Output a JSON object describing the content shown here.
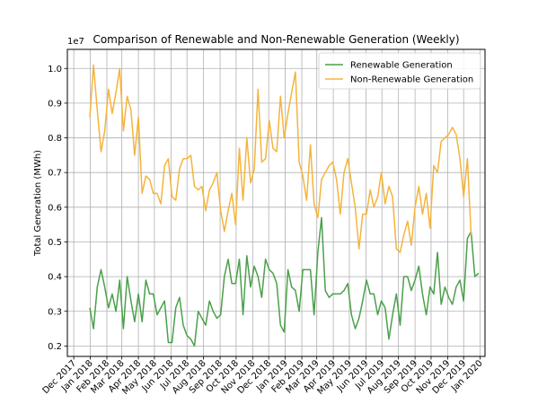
{
  "chart_data": {
    "type": "line",
    "title": "Comparison of Renewable and Non-Renewable Generation (Weekly)",
    "xlabel": "",
    "ylabel": "Total Generation (MWh)",
    "y_scale_label": "1e7",
    "ylim": [
      0.17,
      1.055
    ],
    "xlim": [
      "2017-11-19",
      "2020-01-10"
    ],
    "y_ticks": [
      0.2,
      0.3,
      0.4,
      0.5,
      0.6,
      0.7,
      0.8,
      0.9,
      1.0
    ],
    "y_tick_labels": [
      "0.2",
      "0.3",
      "0.4",
      "0.5",
      "0.6",
      "0.7",
      "0.8",
      "0.9",
      "1.0"
    ],
    "x_ticks": [
      "2017-12-01",
      "2018-01-01",
      "2018-02-01",
      "2018-03-01",
      "2018-04-01",
      "2018-05-01",
      "2018-06-01",
      "2018-07-01",
      "2018-08-01",
      "2018-09-01",
      "2018-10-01",
      "2018-11-01",
      "2018-12-01",
      "2019-01-01",
      "2019-02-01",
      "2019-03-01",
      "2019-04-01",
      "2019-05-01",
      "2019-06-01",
      "2019-07-01",
      "2019-08-01",
      "2019-09-01",
      "2019-10-01",
      "2019-11-01",
      "2019-12-01",
      "2020-01-01"
    ],
    "x_tick_labels": [
      "Dec 2017",
      "Jan 2018",
      "Feb 2018",
      "Mar 2018",
      "Apr 2018",
      "May 2018",
      "Jun 2018",
      "Jul 2018",
      "Aug 2018",
      "Sep 2018",
      "Oct 2018",
      "Nov 2018",
      "Dec 2018",
      "Jan 2019",
      "Feb 2019",
      "Mar 2019",
      "Apr 2019",
      "May 2019",
      "Jun 2019",
      "Jul 2019",
      "Aug 2019",
      "Sep 2019",
      "Oct 2019",
      "Nov 2019",
      "Dec 2019",
      "Jan 2020"
    ],
    "grid": true,
    "legend_position": "top-right",
    "x_start": "2017-12-31",
    "x_step_days": 7,
    "series": [
      {
        "name": "Renewable Generation",
        "color": "#4aa04a",
        "values": [
          0.31,
          0.25,
          0.37,
          0.42,
          0.37,
          0.31,
          0.35,
          0.3,
          0.39,
          0.25,
          0.4,
          0.33,
          0.27,
          0.35,
          0.27,
          0.39,
          0.35,
          0.35,
          0.29,
          0.31,
          0.33,
          0.21,
          0.21,
          0.31,
          0.34,
          0.26,
          0.23,
          0.22,
          0.2,
          0.3,
          0.28,
          0.26,
          0.33,
          0.3,
          0.28,
          0.29,
          0.4,
          0.45,
          0.38,
          0.38,
          0.45,
          0.29,
          0.46,
          0.37,
          0.43,
          0.4,
          0.34,
          0.45,
          0.42,
          0.41,
          0.38,
          0.26,
          0.24,
          0.42,
          0.37,
          0.36,
          0.3,
          0.42,
          0.42,
          0.42,
          0.29,
          0.47,
          0.57,
          0.36,
          0.34,
          0.35,
          0.35,
          0.35,
          0.36,
          0.38,
          0.29,
          0.25,
          0.28,
          0.33,
          0.39,
          0.35,
          0.35,
          0.29,
          0.33,
          0.31,
          0.22,
          0.29,
          0.35,
          0.26,
          0.4,
          0.4,
          0.36,
          0.39,
          0.43,
          0.35,
          0.29,
          0.37,
          0.35,
          0.47,
          0.32,
          0.37,
          0.34,
          0.32,
          0.37,
          0.39,
          0.33,
          0.51,
          0.53,
          0.4,
          0.41
        ]
      },
      {
        "name": "Non-Renewable Generation",
        "color": "#f5b43c",
        "values": [
          0.86,
          1.01,
          0.88,
          0.76,
          0.82,
          0.94,
          0.87,
          0.93,
          1.0,
          0.82,
          0.92,
          0.88,
          0.75,
          0.86,
          0.64,
          0.69,
          0.68,
          0.64,
          0.64,
          0.61,
          0.72,
          0.74,
          0.63,
          0.62,
          0.71,
          0.74,
          0.74,
          0.75,
          0.66,
          0.65,
          0.66,
          0.59,
          0.65,
          0.67,
          0.7,
          0.59,
          0.53,
          0.59,
          0.64,
          0.55,
          0.77,
          0.62,
          0.8,
          0.67,
          0.71,
          0.94,
          0.73,
          0.74,
          0.85,
          0.77,
          0.76,
          0.92,
          0.8,
          0.87,
          0.93,
          0.99,
          0.73,
          0.69,
          0.62,
          0.78,
          0.61,
          0.57,
          0.68,
          0.7,
          0.72,
          0.73,
          0.68,
          0.58,
          0.7,
          0.74,
          0.67,
          0.6,
          0.48,
          0.58,
          0.58,
          0.65,
          0.6,
          0.63,
          0.7,
          0.61,
          0.66,
          0.63,
          0.48,
          0.47,
          0.52,
          0.56,
          0.49,
          0.6,
          0.66,
          0.58,
          0.64,
          0.54,
          0.72,
          0.7,
          0.79,
          0.8,
          0.81,
          0.83,
          0.81,
          0.74,
          0.63,
          0.74,
          0.52
        ]
      }
    ]
  }
}
